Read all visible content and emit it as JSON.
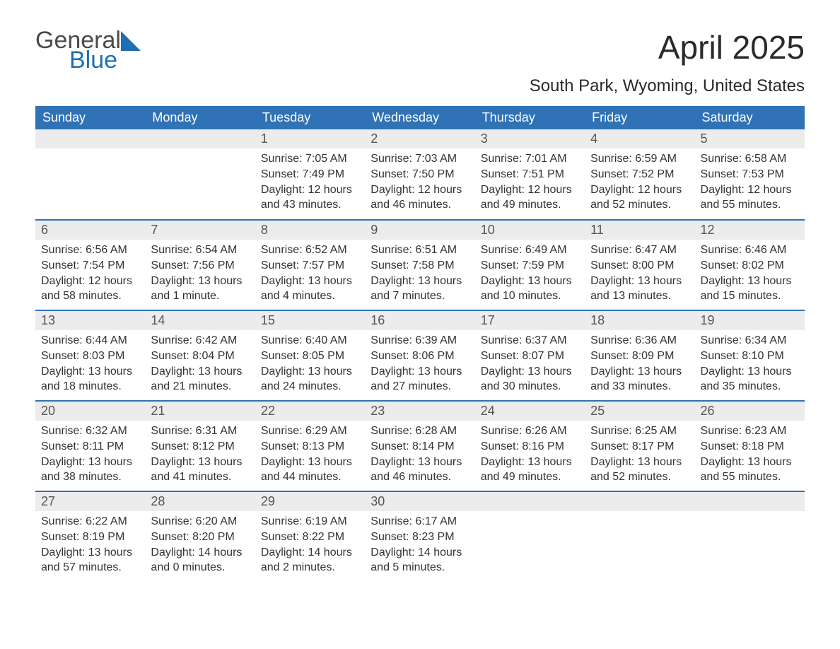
{
  "logo": {
    "line1": "General",
    "line2": "Blue",
    "color_text": "#4a4a4a",
    "color_blue": "#1f6fb2"
  },
  "title": "April 2025",
  "location": "South Park, Wyoming, United States",
  "theme": {
    "header_bg": "#2f72b6",
    "header_fg": "#ffffff",
    "daynum_bg": "#ececec",
    "daynum_fg": "#555555",
    "body_fg": "#333333",
    "page_bg": "#ffffff",
    "row_border": "#2f72b6"
  },
  "weekdays": [
    "Sunday",
    "Monday",
    "Tuesday",
    "Wednesday",
    "Thursday",
    "Friday",
    "Saturday"
  ],
  "weeks": [
    [
      null,
      null,
      {
        "n": "1",
        "sr": "7:05 AM",
        "ss": "7:49 PM",
        "d": "12 hours and 43 minutes."
      },
      {
        "n": "2",
        "sr": "7:03 AM",
        "ss": "7:50 PM",
        "d": "12 hours and 46 minutes."
      },
      {
        "n": "3",
        "sr": "7:01 AM",
        "ss": "7:51 PM",
        "d": "12 hours and 49 minutes."
      },
      {
        "n": "4",
        "sr": "6:59 AM",
        "ss": "7:52 PM",
        "d": "12 hours and 52 minutes."
      },
      {
        "n": "5",
        "sr": "6:58 AM",
        "ss": "7:53 PM",
        "d": "12 hours and 55 minutes."
      }
    ],
    [
      {
        "n": "6",
        "sr": "6:56 AM",
        "ss": "7:54 PM",
        "d": "12 hours and 58 minutes."
      },
      {
        "n": "7",
        "sr": "6:54 AM",
        "ss": "7:56 PM",
        "d": "13 hours and 1 minute."
      },
      {
        "n": "8",
        "sr": "6:52 AM",
        "ss": "7:57 PM",
        "d": "13 hours and 4 minutes."
      },
      {
        "n": "9",
        "sr": "6:51 AM",
        "ss": "7:58 PM",
        "d": "13 hours and 7 minutes."
      },
      {
        "n": "10",
        "sr": "6:49 AM",
        "ss": "7:59 PM",
        "d": "13 hours and 10 minutes."
      },
      {
        "n": "11",
        "sr": "6:47 AM",
        "ss": "8:00 PM",
        "d": "13 hours and 13 minutes."
      },
      {
        "n": "12",
        "sr": "6:46 AM",
        "ss": "8:02 PM",
        "d": "13 hours and 15 minutes."
      }
    ],
    [
      {
        "n": "13",
        "sr": "6:44 AM",
        "ss": "8:03 PM",
        "d": "13 hours and 18 minutes."
      },
      {
        "n": "14",
        "sr": "6:42 AM",
        "ss": "8:04 PM",
        "d": "13 hours and 21 minutes."
      },
      {
        "n": "15",
        "sr": "6:40 AM",
        "ss": "8:05 PM",
        "d": "13 hours and 24 minutes."
      },
      {
        "n": "16",
        "sr": "6:39 AM",
        "ss": "8:06 PM",
        "d": "13 hours and 27 minutes."
      },
      {
        "n": "17",
        "sr": "6:37 AM",
        "ss": "8:07 PM",
        "d": "13 hours and 30 minutes."
      },
      {
        "n": "18",
        "sr": "6:36 AM",
        "ss": "8:09 PM",
        "d": "13 hours and 33 minutes."
      },
      {
        "n": "19",
        "sr": "6:34 AM",
        "ss": "8:10 PM",
        "d": "13 hours and 35 minutes."
      }
    ],
    [
      {
        "n": "20",
        "sr": "6:32 AM",
        "ss": "8:11 PM",
        "d": "13 hours and 38 minutes."
      },
      {
        "n": "21",
        "sr": "6:31 AM",
        "ss": "8:12 PM",
        "d": "13 hours and 41 minutes."
      },
      {
        "n": "22",
        "sr": "6:29 AM",
        "ss": "8:13 PM",
        "d": "13 hours and 44 minutes."
      },
      {
        "n": "23",
        "sr": "6:28 AM",
        "ss": "8:14 PM",
        "d": "13 hours and 46 minutes."
      },
      {
        "n": "24",
        "sr": "6:26 AM",
        "ss": "8:16 PM",
        "d": "13 hours and 49 minutes."
      },
      {
        "n": "25",
        "sr": "6:25 AM",
        "ss": "8:17 PM",
        "d": "13 hours and 52 minutes."
      },
      {
        "n": "26",
        "sr": "6:23 AM",
        "ss": "8:18 PM",
        "d": "13 hours and 55 minutes."
      }
    ],
    [
      {
        "n": "27",
        "sr": "6:22 AM",
        "ss": "8:19 PM",
        "d": "13 hours and 57 minutes."
      },
      {
        "n": "28",
        "sr": "6:20 AM",
        "ss": "8:20 PM",
        "d": "14 hours and 0 minutes."
      },
      {
        "n": "29",
        "sr": "6:19 AM",
        "ss": "8:22 PM",
        "d": "14 hours and 2 minutes."
      },
      {
        "n": "30",
        "sr": "6:17 AM",
        "ss": "8:23 PM",
        "d": "14 hours and 5 minutes."
      },
      null,
      null,
      null
    ]
  ],
  "labels": {
    "sunrise": "Sunrise: ",
    "sunset": "Sunset: ",
    "daylight": "Daylight: "
  }
}
